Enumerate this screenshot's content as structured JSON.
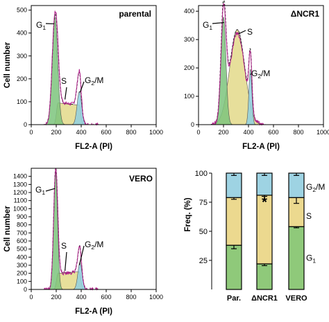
{
  "chart_data": [
    {
      "type": "area",
      "panel": "parental",
      "title": "parental",
      "xlabel": "FL2-A (PI)",
      "ylabel": "Cell number",
      "xlim": [
        0,
        1000
      ],
      "ylim": [
        0,
        520
      ],
      "xticks": [
        0,
        200,
        400,
        600,
        800,
        1000
      ],
      "yticks": [
        0,
        100,
        200,
        300,
        400,
        500
      ],
      "phase_labels": [
        {
          "main": "G",
          "sub": "1"
        },
        {
          "main": "S",
          "sub": ""
        },
        {
          "main": "G",
          "sub": "2",
          "tail": "/M"
        }
      ],
      "components": [
        {
          "name": "G1",
          "color": "#7cc47c",
          "peak_x": 190,
          "peak_y": 470,
          "sigma": 22
        },
        {
          "name": "S",
          "color": "#e3d98a",
          "from_x": 215,
          "to_x": 385,
          "level_start": 95,
          "level_end": 85
        },
        {
          "name": "G2/M",
          "color": "#8fd0e0",
          "peak_x": 385,
          "peak_y": 145,
          "sigma": 18
        }
      ],
      "envelope_peak": 505
    },
    {
      "type": "area",
      "panel": "ΔNCR1",
      "title": "ΔNCR1",
      "xlabel": "FL2-A (PI)",
      "ylabel": "",
      "xlim": [
        0,
        1000
      ],
      "ylim": [
        0,
        420
      ],
      "xticks": [
        0,
        200,
        400,
        600,
        800,
        1000
      ],
      "yticks": [
        0,
        100,
        200,
        300,
        400
      ],
      "phase_labels": [
        {
          "main": "G",
          "sub": "1"
        },
        {
          "main": "S",
          "sub": ""
        },
        {
          "main": "G",
          "sub": "2",
          "tail": "/M"
        }
      ],
      "components": [
        {
          "name": "G1",
          "color": "#7cc47c",
          "peak_x": 200,
          "peak_y": 380,
          "sigma": 20
        },
        {
          "name": "S",
          "color": "#e3d98a",
          "peak_x": 310,
          "peak_y": 335,
          "sigma": 60
        },
        {
          "name": "G2/M",
          "color": "#8fd0e0",
          "peak_x": 415,
          "peak_y": 195,
          "sigma": 12
        }
      ],
      "envelope_peak": 410
    },
    {
      "type": "area",
      "panel": "VERO",
      "title": "VERO",
      "xlabel": "FL2-A (PI)",
      "ylabel": "Cell number",
      "xlim": [
        0,
        1000
      ],
      "ylim": [
        0,
        1500
      ],
      "xticks": [
        0,
        200,
        400,
        600,
        800,
        1000
      ],
      "yticks": [
        0,
        100,
        200,
        300,
        400,
        500,
        600,
        700,
        800,
        900,
        1000,
        1100,
        1200,
        1300,
        1400
      ],
      "phase_labels": [
        {
          "main": "G",
          "sub": "1"
        },
        {
          "main": "S",
          "sub": ""
        },
        {
          "main": "G",
          "sub": "2",
          "tail": "/M"
        }
      ],
      "components": [
        {
          "name": "G1",
          "color": "#7cc47c",
          "peak_x": 195,
          "peak_y": 1450,
          "sigma": 16
        },
        {
          "name": "S",
          "color": "#e3d98a",
          "from_x": 215,
          "to_x": 385,
          "level_start": 200,
          "level_end": 220
        },
        {
          "name": "G2/M",
          "color": "#8fd0e0",
          "peak_x": 390,
          "peak_y": 330,
          "sigma": 17
        }
      ],
      "envelope_peak": 1450
    },
    {
      "type": "bar",
      "stacked": true,
      "ylabel": "Freq. (%)",
      "ylim": [
        0,
        100
      ],
      "yticks": [
        25,
        50,
        75,
        100
      ],
      "categories": [
        "Par.",
        "ΔNCR1",
        "VERO"
      ],
      "series": [
        {
          "name": "G1",
          "label": {
            "main": "G",
            "sub": "1"
          },
          "color": "#8fc97a",
          "values": [
            38,
            22,
            54
          ],
          "errors": [
            3,
            1.5,
            1
          ]
        },
        {
          "name": "S",
          "label": {
            "main": "S",
            "sub": ""
          },
          "color": "#ecd98f",
          "values": [
            41,
            59,
            25
          ],
          "errors": [
            1.5,
            1,
            5
          ]
        },
        {
          "name": "G2/M",
          "label": {
            "main": "G",
            "sub": "2",
            "tail": "/M"
          },
          "color": "#9ed3e3",
          "values": [
            21,
            19,
            21
          ],
          "errors": [
            2,
            2,
            2
          ]
        }
      ],
      "annotations": [
        {
          "category": "ΔNCR1",
          "text": "*"
        }
      ]
    }
  ]
}
